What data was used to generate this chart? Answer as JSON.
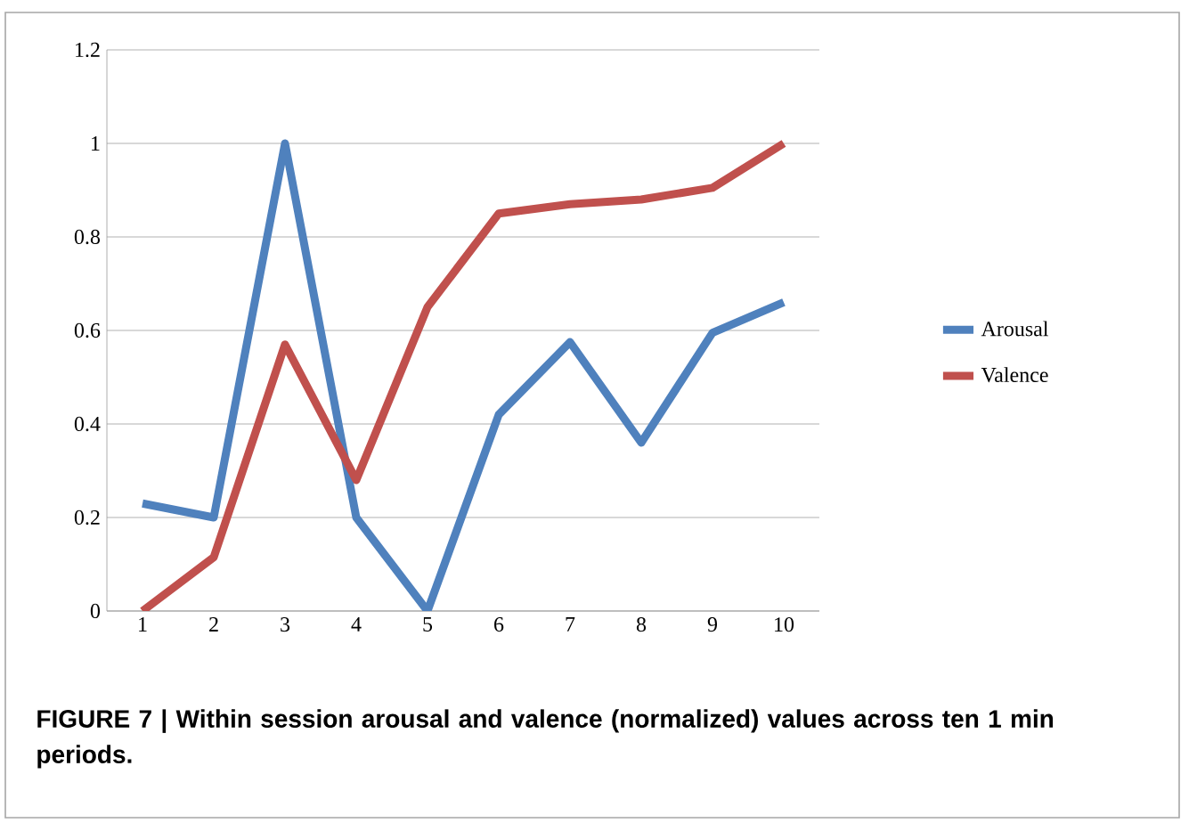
{
  "chart_data": {
    "type": "line",
    "categories": [
      "1",
      "2",
      "3",
      "4",
      "5",
      "6",
      "7",
      "8",
      "9",
      "10"
    ],
    "series": [
      {
        "name": "Arousal",
        "color": "#4f81bd",
        "values": [
          0.23,
          0.2,
          1.0,
          0.2,
          0,
          0.42,
          0.575,
          0.36,
          0.595,
          0.66
        ]
      },
      {
        "name": "Valence",
        "color": "#c0504d",
        "values": [
          0,
          0.115,
          0.57,
          0.28,
          0.65,
          0.85,
          0.87,
          0.88,
          0.905,
          1.0
        ]
      }
    ],
    "ylim": [
      0,
      1.2
    ],
    "yticks": [
      0,
      0.2,
      0.4,
      0.6,
      0.8,
      1,
      1.2
    ],
    "grid": "y",
    "legend": "right",
    "marker": "none",
    "line_style": "solid",
    "annotations": [
      "FIGURE 7 | Within session arousal and valence (normalized) values across ten 1 min periods."
    ]
  }
}
